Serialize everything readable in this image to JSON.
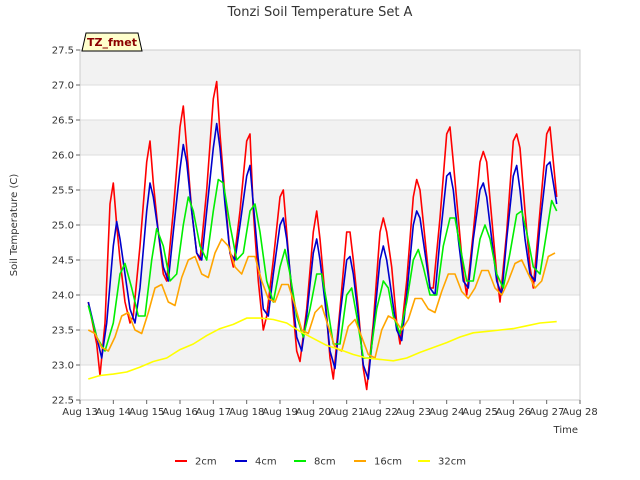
{
  "chart_data": {
    "type": "line",
    "title": "Tonzi Soil Temperature Set A",
    "xlabel": "Time",
    "ylabel": "Soil Temperature (C)",
    "badge": "TZ_fmet",
    "xlim": [
      13,
      28
    ],
    "ylim": [
      22.5,
      27.5
    ],
    "x_ticks": [
      13,
      14,
      15,
      16,
      17,
      18,
      19,
      20,
      21,
      22,
      23,
      24,
      25,
      26,
      27,
      28
    ],
    "x_tick_labels": [
      "Aug 13",
      "Aug 14",
      "Aug 15",
      "Aug 16",
      "Aug 17",
      "Aug 18",
      "Aug 19",
      "Aug 20",
      "Aug 21",
      "Aug 22",
      "Aug 23",
      "Aug 24",
      "Aug 25",
      "Aug 26",
      "Aug 27",
      "Aug 28"
    ],
    "y_ticks": [
      22.5,
      23.0,
      23.5,
      24.0,
      24.5,
      25.0,
      25.5,
      26.0,
      26.5,
      27.0,
      27.5
    ],
    "y_tick_labels": [
      "22.5",
      "23.0",
      "23.5",
      "24.0",
      "24.5",
      "25.0",
      "25.5",
      "26.0",
      "26.5",
      "27.0",
      "27.5"
    ],
    "grid": true,
    "legend_position": "bottom",
    "series": [
      {
        "name": "2cm",
        "color": "#ff0000",
        "x": [
          13.25,
          13.5,
          13.6,
          13.75,
          13.9,
          14.0,
          14.1,
          14.2,
          14.35,
          14.5,
          14.6,
          14.8,
          15.0,
          15.1,
          15.2,
          15.35,
          15.5,
          15.6,
          15.8,
          16.0,
          16.1,
          16.2,
          16.35,
          16.5,
          16.6,
          16.8,
          17.0,
          17.1,
          17.2,
          17.35,
          17.5,
          17.6,
          17.8,
          18.0,
          18.1,
          18.2,
          18.35,
          18.5,
          18.6,
          18.8,
          19.0,
          19.1,
          19.2,
          19.35,
          19.5,
          19.6,
          19.8,
          20.0,
          20.1,
          20.2,
          20.35,
          20.5,
          20.6,
          20.8,
          21.0,
          21.1,
          21.2,
          21.35,
          21.5,
          21.6,
          21.8,
          22.0,
          22.1,
          22.2,
          22.35,
          22.5,
          22.6,
          22.8,
          23.0,
          23.1,
          23.2,
          23.35,
          23.5,
          23.6,
          23.8,
          24.0,
          24.1,
          24.2,
          24.35,
          24.5,
          24.6,
          24.8,
          25.0,
          25.1,
          25.2,
          25.35,
          25.5,
          25.6,
          25.8,
          26.0,
          26.1,
          26.2,
          26.35,
          26.5,
          26.6,
          26.8,
          27.0,
          27.1,
          27.3
        ],
        "y": [
          23.9,
          23.3,
          22.85,
          23.6,
          25.3,
          25.6,
          25.0,
          24.5,
          23.9,
          23.6,
          23.7,
          24.7,
          25.9,
          26.2,
          25.6,
          24.9,
          24.3,
          24.2,
          25.2,
          26.4,
          26.7,
          26.1,
          25.2,
          24.6,
          24.5,
          25.5,
          26.8,
          27.05,
          26.3,
          25.4,
          24.6,
          24.4,
          25.2,
          26.2,
          26.3,
          25.2,
          24.2,
          23.5,
          23.7,
          24.5,
          25.4,
          25.5,
          24.9,
          24.0,
          23.2,
          23.05,
          23.8,
          24.9,
          25.2,
          24.8,
          24.0,
          23.1,
          22.8,
          23.8,
          24.9,
          24.9,
          24.5,
          23.8,
          22.95,
          22.65,
          23.6,
          24.9,
          25.1,
          24.9,
          24.4,
          23.6,
          23.3,
          24.2,
          25.4,
          25.65,
          25.5,
          24.8,
          24.1,
          24.1,
          25.1,
          26.3,
          26.4,
          25.9,
          25.1,
          24.3,
          24.0,
          24.9,
          25.9,
          26.05,
          25.9,
          25.1,
          24.3,
          23.9,
          24.9,
          26.2,
          26.3,
          26.1,
          25.2,
          24.4,
          24.1,
          25.2,
          26.3,
          26.4,
          25.4
        ]
      },
      {
        "name": "4cm",
        "color": "#0000cc",
        "x": [
          13.25,
          13.5,
          13.65,
          13.8,
          14.0,
          14.1,
          14.2,
          14.35,
          14.5,
          14.65,
          14.8,
          15.0,
          15.1,
          15.2,
          15.35,
          15.5,
          15.65,
          15.8,
          16.0,
          16.1,
          16.2,
          16.35,
          16.5,
          16.65,
          16.8,
          17.0,
          17.1,
          17.2,
          17.35,
          17.5,
          17.65,
          17.8,
          18.0,
          18.1,
          18.2,
          18.35,
          18.5,
          18.65,
          18.8,
          19.0,
          19.1,
          19.2,
          19.35,
          19.5,
          19.65,
          19.8,
          20.0,
          20.1,
          20.2,
          20.35,
          20.5,
          20.65,
          20.8,
          21.0,
          21.1,
          21.2,
          21.35,
          21.5,
          21.65,
          21.8,
          22.0,
          22.1,
          22.2,
          22.35,
          22.5,
          22.65,
          22.8,
          23.0,
          23.1,
          23.2,
          23.35,
          23.5,
          23.65,
          23.8,
          24.0,
          24.1,
          24.2,
          24.35,
          24.5,
          24.65,
          24.8,
          25.0,
          25.1,
          25.2,
          25.35,
          25.5,
          25.65,
          25.8,
          26.0,
          26.1,
          26.2,
          26.35,
          26.5,
          26.65,
          26.8,
          27.0,
          27.1,
          27.3
        ],
        "y": [
          23.9,
          23.4,
          23.1,
          23.6,
          24.7,
          25.05,
          24.8,
          24.3,
          23.8,
          23.6,
          24.1,
          25.2,
          25.6,
          25.4,
          24.9,
          24.4,
          24.2,
          24.9,
          25.8,
          26.15,
          25.9,
          25.2,
          24.6,
          24.5,
          25.2,
          26.1,
          26.45,
          26.1,
          25.3,
          24.6,
          24.5,
          25.0,
          25.7,
          25.85,
          25.3,
          24.5,
          23.8,
          23.7,
          24.3,
          25.0,
          25.1,
          24.8,
          24.1,
          23.4,
          23.2,
          23.7,
          24.6,
          24.8,
          24.5,
          23.9,
          23.2,
          22.95,
          23.7,
          24.5,
          24.55,
          24.3,
          23.7,
          23.0,
          22.8,
          23.5,
          24.5,
          24.7,
          24.5,
          24.0,
          23.5,
          23.35,
          24.0,
          25.0,
          25.2,
          25.1,
          24.6,
          24.1,
          24.0,
          24.8,
          25.7,
          25.75,
          25.5,
          24.8,
          24.2,
          24.1,
          24.8,
          25.5,
          25.6,
          25.4,
          24.8,
          24.2,
          24.0,
          24.8,
          25.7,
          25.85,
          25.5,
          24.8,
          24.3,
          24.2,
          25.0,
          25.85,
          25.9,
          25.3
        ]
      },
      {
        "name": "8cm",
        "color": "#00ee00",
        "x": [
          13.25,
          13.5,
          13.75,
          14.0,
          14.2,
          14.35,
          14.55,
          14.75,
          14.95,
          15.15,
          15.3,
          15.5,
          15.7,
          15.9,
          16.1,
          16.25,
          16.4,
          16.6,
          16.8,
          17.0,
          17.15,
          17.3,
          17.5,
          17.7,
          17.9,
          18.1,
          18.25,
          18.4,
          18.6,
          18.8,
          19.0,
          19.15,
          19.3,
          19.5,
          19.7,
          19.9,
          20.1,
          20.25,
          20.4,
          20.6,
          20.8,
          21.0,
          21.15,
          21.3,
          21.5,
          21.7,
          21.9,
          22.1,
          22.25,
          22.4,
          22.6,
          22.8,
          23.0,
          23.15,
          23.3,
          23.5,
          23.7,
          23.9,
          24.1,
          24.25,
          24.4,
          24.6,
          24.8,
          25.0,
          25.15,
          25.3,
          25.5,
          25.7,
          25.9,
          26.1,
          26.25,
          26.4,
          26.6,
          26.8,
          27.0,
          27.15,
          27.3
        ],
        "y": [
          23.85,
          23.4,
          23.2,
          23.6,
          24.3,
          24.45,
          24.1,
          23.7,
          23.7,
          24.5,
          24.95,
          24.7,
          24.2,
          24.3,
          25.0,
          25.4,
          25.2,
          24.7,
          24.5,
          25.2,
          25.65,
          25.6,
          25.0,
          24.5,
          24.6,
          25.2,
          25.3,
          24.9,
          24.2,
          23.9,
          24.4,
          24.65,
          24.3,
          23.7,
          23.4,
          23.8,
          24.3,
          24.3,
          23.9,
          23.3,
          23.3,
          24.0,
          24.1,
          23.7,
          23.1,
          23.1,
          23.8,
          24.2,
          24.1,
          23.7,
          23.45,
          23.9,
          24.5,
          24.65,
          24.4,
          24.0,
          24.0,
          24.7,
          25.1,
          25.1,
          24.7,
          24.2,
          24.2,
          24.8,
          25.0,
          24.8,
          24.3,
          24.1,
          24.6,
          25.15,
          25.2,
          24.9,
          24.4,
          24.3,
          24.9,
          25.35,
          25.2
        ]
      },
      {
        "name": "16cm",
        "color": "#ffa500",
        "x": [
          13.25,
          13.45,
          13.65,
          13.85,
          14.05,
          14.25,
          14.45,
          14.65,
          14.85,
          15.05,
          15.25,
          15.45,
          15.65,
          15.85,
          16.05,
          16.25,
          16.45,
          16.65,
          16.85,
          17.05,
          17.25,
          17.45,
          17.65,
          17.85,
          18.05,
          18.25,
          18.45,
          18.65,
          18.85,
          19.05,
          19.25,
          19.45,
          19.65,
          19.85,
          20.05,
          20.25,
          20.45,
          20.65,
          20.85,
          21.05,
          21.25,
          21.45,
          21.65,
          21.85,
          22.05,
          22.25,
          22.45,
          22.65,
          22.85,
          23.05,
          23.25,
          23.45,
          23.65,
          23.85,
          24.05,
          24.25,
          24.45,
          24.65,
          24.85,
          25.05,
          25.25,
          25.45,
          25.65,
          25.85,
          26.05,
          26.25,
          26.45,
          26.65,
          26.85,
          27.05,
          27.25
        ],
        "y": [
          23.5,
          23.45,
          23.25,
          23.2,
          23.4,
          23.7,
          23.75,
          23.5,
          23.45,
          23.75,
          24.1,
          24.15,
          23.9,
          23.85,
          24.25,
          24.5,
          24.55,
          24.3,
          24.25,
          24.6,
          24.8,
          24.7,
          24.4,
          24.3,
          24.55,
          24.55,
          24.2,
          23.95,
          23.9,
          24.15,
          24.15,
          23.85,
          23.5,
          23.45,
          23.75,
          23.85,
          23.55,
          23.25,
          23.2,
          23.55,
          23.65,
          23.4,
          23.15,
          23.1,
          23.5,
          23.7,
          23.65,
          23.5,
          23.65,
          23.95,
          23.95,
          23.8,
          23.75,
          24.05,
          24.3,
          24.3,
          24.05,
          23.95,
          24.1,
          24.35,
          24.35,
          24.1,
          24.0,
          24.2,
          24.45,
          24.5,
          24.3,
          24.1,
          24.2,
          24.55,
          24.6
        ]
      },
      {
        "name": "32cm",
        "color": "#ffff00",
        "x": [
          13.25,
          13.6,
          14.0,
          14.4,
          14.8,
          15.2,
          15.6,
          16.0,
          16.4,
          16.8,
          17.2,
          17.6,
          18.0,
          18.4,
          18.8,
          19.2,
          19.6,
          20.0,
          20.4,
          20.8,
          21.2,
          21.6,
          22.0,
          22.4,
          22.8,
          23.2,
          23.6,
          24.0,
          24.4,
          24.8,
          25.2,
          25.6,
          26.0,
          26.4,
          26.8,
          27.3
        ],
        "y": [
          22.8,
          22.85,
          22.87,
          22.9,
          22.97,
          23.05,
          23.1,
          23.22,
          23.3,
          23.42,
          23.52,
          23.58,
          23.67,
          23.67,
          23.65,
          23.6,
          23.48,
          23.38,
          23.28,
          23.22,
          23.15,
          23.1,
          23.08,
          23.06,
          23.1,
          23.18,
          23.25,
          23.32,
          23.4,
          23.46,
          23.48,
          23.5,
          23.52,
          23.56,
          23.6,
          23.62
        ]
      }
    ]
  }
}
